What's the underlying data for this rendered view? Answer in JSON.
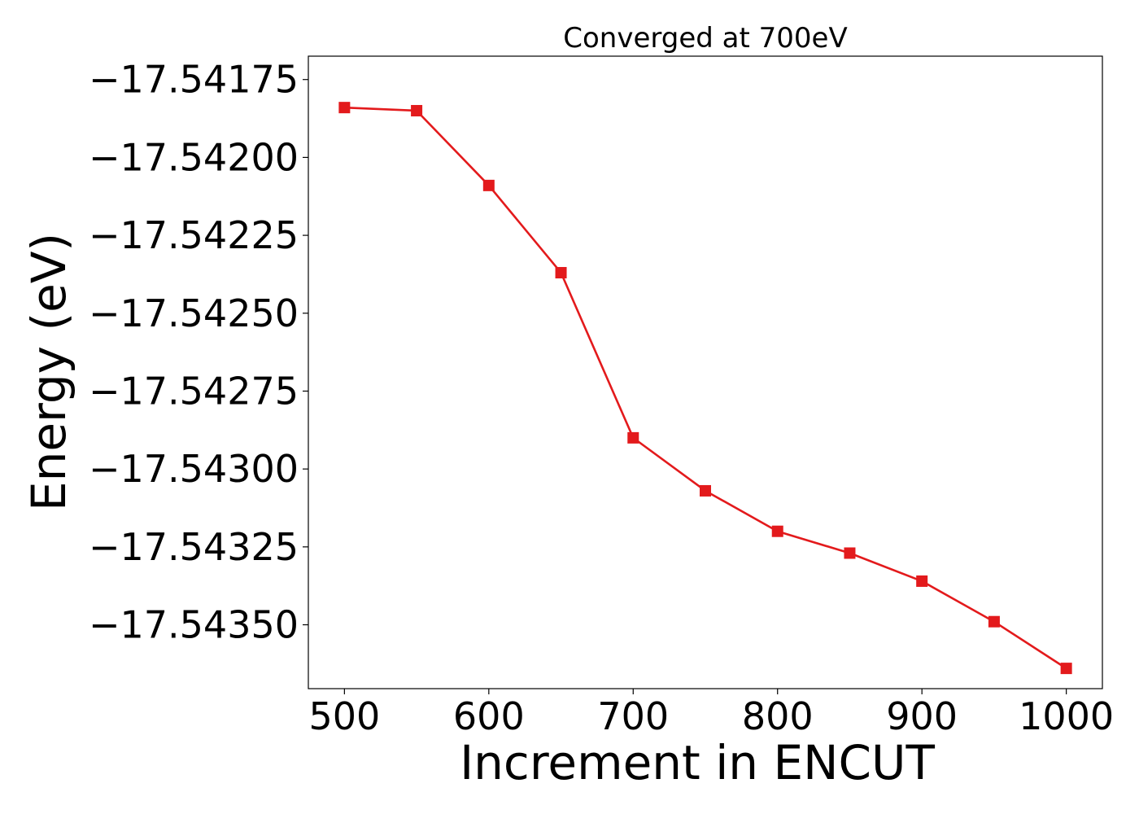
{
  "chart_data": {
    "type": "line",
    "title": "Converged at 700eV",
    "xlabel": "Increment in ENCUT",
    "ylabel": "Energy (eV)",
    "xlim": [
      475,
      1025
    ],
    "ylim": [
      -17.543705,
      -17.541675
    ],
    "x_ticks": [
      500,
      600,
      700,
      800,
      900,
      1000
    ],
    "y_ticks": [
      -17.54175,
      -17.542,
      -17.54225,
      -17.5425,
      -17.54275,
      -17.543,
      -17.54325,
      -17.5435
    ],
    "y_tick_labels": [
      "−17.54175",
      "−17.54200",
      "−17.54225",
      "−17.54250",
      "−17.54275",
      "−17.54300",
      "−17.54325",
      "−17.54350"
    ],
    "grid": false,
    "series": [
      {
        "color": "#e31a1c",
        "marker": "square",
        "x": [
          500,
          550,
          600,
          650,
          700,
          750,
          800,
          850,
          900,
          950,
          1000
        ],
        "y": [
          -17.54184,
          -17.54185,
          -17.54209,
          -17.54237,
          -17.5429,
          -17.54307,
          -17.5432,
          -17.54327,
          -17.54336,
          -17.54349,
          -17.54364
        ]
      }
    ]
  }
}
